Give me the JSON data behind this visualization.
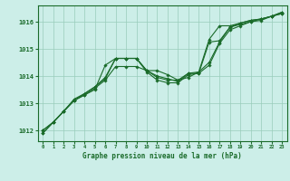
{
  "background_color": "#cceee8",
  "grid_color": "#99ccbb",
  "line_color": "#1a6b2a",
  "marker_color": "#1a6b2a",
  "xlabel": "Graphe pression niveau de la mer (hPa)",
  "xlim": [
    -0.5,
    23.5
  ],
  "ylim": [
    1011.6,
    1016.6
  ],
  "yticks": [
    1012,
    1013,
    1014,
    1015,
    1016
  ],
  "xticks": [
    0,
    1,
    2,
    3,
    4,
    5,
    6,
    7,
    8,
    9,
    10,
    11,
    12,
    13,
    14,
    15,
    16,
    17,
    18,
    19,
    20,
    21,
    22,
    23
  ],
  "series1": {
    "x": [
      0,
      1,
      2,
      3,
      4,
      5,
      6,
      7,
      8,
      9,
      10,
      11,
      12,
      13,
      14,
      15,
      16,
      17,
      18,
      19,
      20,
      21,
      22,
      23
    ],
    "y": [
      1012.0,
      1012.3,
      1012.7,
      1013.1,
      1013.3,
      1013.55,
      1013.85,
      1014.35,
      1014.35,
      1014.35,
      1014.2,
      1014.2,
      1014.05,
      1013.85,
      1013.95,
      1014.15,
      1015.35,
      1015.85,
      1015.85,
      1015.95,
      1016.05,
      1016.1,
      1016.2,
      1016.3
    ]
  },
  "series2": {
    "x": [
      0,
      1,
      2,
      3,
      4,
      5,
      6,
      7,
      8,
      9,
      10,
      11,
      12,
      13,
      14,
      15,
      16,
      17,
      18,
      19,
      20,
      21,
      22,
      23
    ],
    "y": [
      1012.0,
      1012.3,
      1012.7,
      1013.15,
      1013.35,
      1013.6,
      1013.9,
      1014.65,
      1014.65,
      1014.65,
      1014.2,
      1014.0,
      1013.9,
      1013.8,
      1014.1,
      1014.15,
      1014.5,
      1015.25,
      1015.8,
      1015.95,
      1016.05,
      1016.1,
      1016.2,
      1016.35
    ]
  },
  "series3": {
    "x": [
      0,
      1,
      2,
      3,
      4,
      5,
      6,
      7,
      8,
      9,
      10,
      11,
      12,
      13,
      14,
      15,
      16,
      17,
      18,
      19,
      20,
      21,
      22,
      23
    ],
    "y": [
      1011.9,
      1012.3,
      1012.7,
      1013.1,
      1013.35,
      1013.6,
      1013.95,
      1014.65,
      1014.65,
      1014.65,
      1014.15,
      1013.85,
      1013.75,
      1013.75,
      1014.05,
      1014.1,
      1014.4,
      1015.2,
      1015.7,
      1015.85,
      1016.0,
      1016.1,
      1016.2,
      1016.3
    ]
  },
  "series_main": {
    "x": [
      0,
      1,
      2,
      3,
      4,
      5,
      6,
      7,
      8,
      9,
      10,
      11,
      12,
      13,
      14,
      15,
      16,
      17,
      18,
      19,
      20,
      21,
      22,
      23
    ],
    "y": [
      1011.9,
      1012.3,
      1012.7,
      1013.1,
      1013.3,
      1013.5,
      1014.4,
      1014.65,
      1014.65,
      1014.65,
      1014.2,
      1013.95,
      1013.85,
      1013.85,
      1014.1,
      1014.1,
      1015.25,
      1015.3,
      1015.8,
      1015.9,
      1016.0,
      1016.05,
      1016.2,
      1016.35
    ]
  }
}
